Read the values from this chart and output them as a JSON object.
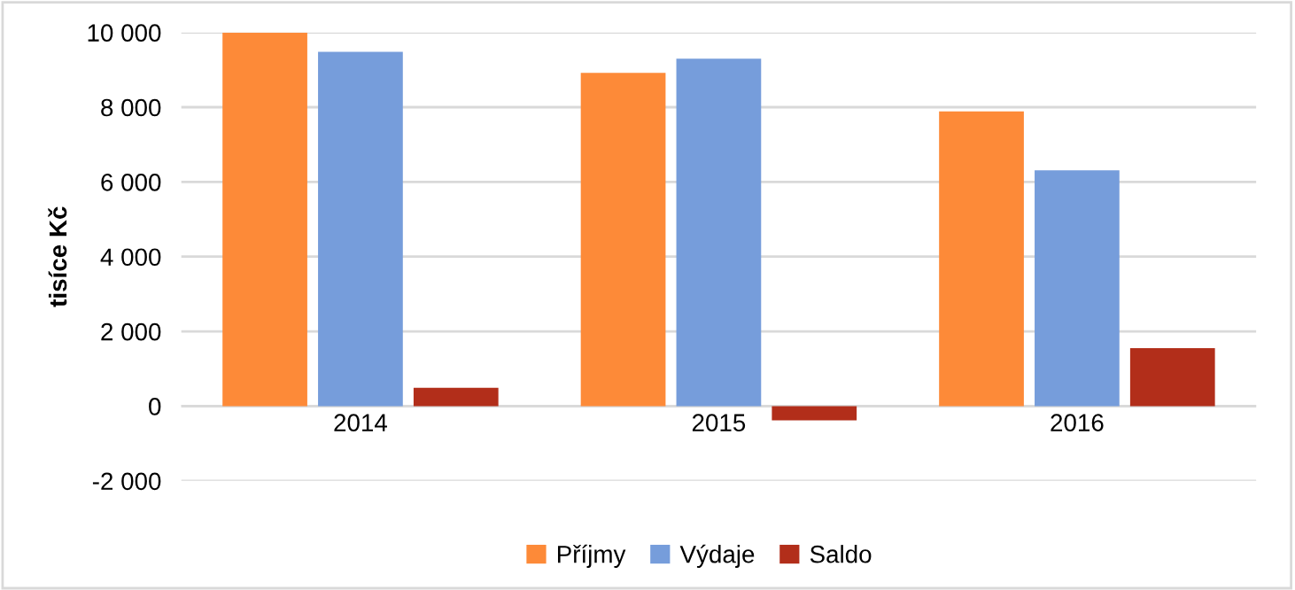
{
  "chart_data": {
    "type": "bar",
    "ylabel": "tisíce Kč",
    "categories": [
      "2014",
      "2015",
      "2016"
    ],
    "series": [
      {
        "name": "Příjmy",
        "color": "#fd8a38",
        "values": [
          10000,
          8920,
          7890
        ]
      },
      {
        "name": "Výdaje",
        "color": "#769ddb",
        "values": [
          9480,
          9300,
          6310
        ]
      },
      {
        "name": "Saldo",
        "color": "#b22e1a",
        "values": [
          490,
          -380,
          1550
        ]
      }
    ],
    "ylim": [
      -2000,
      10000
    ],
    "yticks": [
      {
        "value": -2000,
        "label": "-2 000"
      },
      0,
      {
        "value": 2000,
        "label": "2 000"
      },
      {
        "value": 4000,
        "label": "4 000"
      },
      {
        "value": 6000,
        "label": "6 000"
      },
      {
        "value": 8000,
        "label": "8 000"
      },
      {
        "value": 10000,
        "label": "10 000"
      }
    ],
    "grid": "y",
    "legend": "bottom"
  }
}
